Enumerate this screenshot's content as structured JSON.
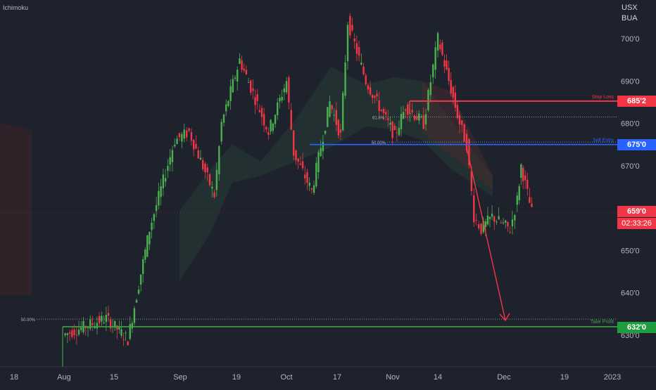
{
  "indicator_label": "Ichimoku",
  "currency": [
    "USX",
    "BUA"
  ],
  "colors": {
    "background": "#1e222d",
    "up": "#4caf50",
    "down": "#f23645",
    "stop_loss": "#f23645",
    "entry": "#2962ff",
    "take_profit": "#43a047",
    "arrow": "#f23645"
  },
  "chart_data": {
    "type": "candlestick",
    "y_tick_labels": [
      "700'0",
      "690'0",
      "680'0",
      "670'0",
      "650'0",
      "640'0",
      "630'0"
    ],
    "x_tick_labels": [
      "18",
      "Aug",
      "15",
      "Sep",
      "19",
      "Oct",
      "17",
      "Nov",
      "14",
      "Dec",
      "19",
      "2023"
    ],
    "ylim": [
      622,
      712
    ],
    "levels": {
      "stop_loss": {
        "label": "Stop Loss",
        "value": 685.25,
        "tag": "685'2"
      },
      "sell_entry": {
        "label": "Sell Entry",
        "value": 675.0,
        "tag": "675'0"
      },
      "take_profit": {
        "label": "Take Profit",
        "value": 632.0,
        "tag": "632'0"
      },
      "fib_61_8": {
        "label": "61.8%",
        "value": 681.5
      },
      "fib_50_upper": {
        "label": "50.00%",
        "value": 675.6
      },
      "fib_50_lower": {
        "label": "50.00%",
        "value": 633.8
      }
    },
    "last_price": {
      "tag": "659'0",
      "timer": "02:33:26",
      "value": 659.0
    },
    "price_path": [
      {
        "date": "Aug 01",
        "price": 630
      },
      {
        "date": "Aug 13",
        "price": 634
      },
      {
        "date": "Aug 19",
        "price": 629
      },
      {
        "date": "Aug 25",
        "price": 655
      },
      {
        "date": "Sep 01",
        "price": 676
      },
      {
        "date": "Sep 05",
        "price": 678
      },
      {
        "date": "Sep 12",
        "price": 663
      },
      {
        "date": "Sep 14",
        "price": 680
      },
      {
        "date": "Sep 19",
        "price": 695
      },
      {
        "date": "Sep 27",
        "price": 678
      },
      {
        "date": "Oct 02",
        "price": 690
      },
      {
        "date": "Oct 04",
        "price": 673
      },
      {
        "date": "Oct 09",
        "price": 664
      },
      {
        "date": "Oct 14",
        "price": 685
      },
      {
        "date": "Oct 17",
        "price": 677
      },
      {
        "date": "Oct 19",
        "price": 704
      },
      {
        "date": "Oct 24",
        "price": 690
      },
      {
        "date": "Nov 01",
        "price": 677
      },
      {
        "date": "Nov 04",
        "price": 684
      },
      {
        "date": "Nov 09",
        "price": 680
      },
      {
        "date": "Nov 13",
        "price": 700
      },
      {
        "date": "Nov 19",
        "price": 680
      },
      {
        "date": "Nov 21",
        "price": 675
      },
      {
        "date": "Nov 23",
        "price": 658
      },
      {
        "date": "Nov 25",
        "price": 655
      },
      {
        "date": "Nov 28",
        "price": 658
      },
      {
        "date": "Dec 03",
        "price": 655
      },
      {
        "date": "Dec 05",
        "price": 662
      },
      {
        "date": "Dec 06",
        "price": 670
      },
      {
        "date": "Dec 09",
        "price": 659
      }
    ],
    "projection": {
      "from_price": 675,
      "to_price": 633.5
    }
  }
}
